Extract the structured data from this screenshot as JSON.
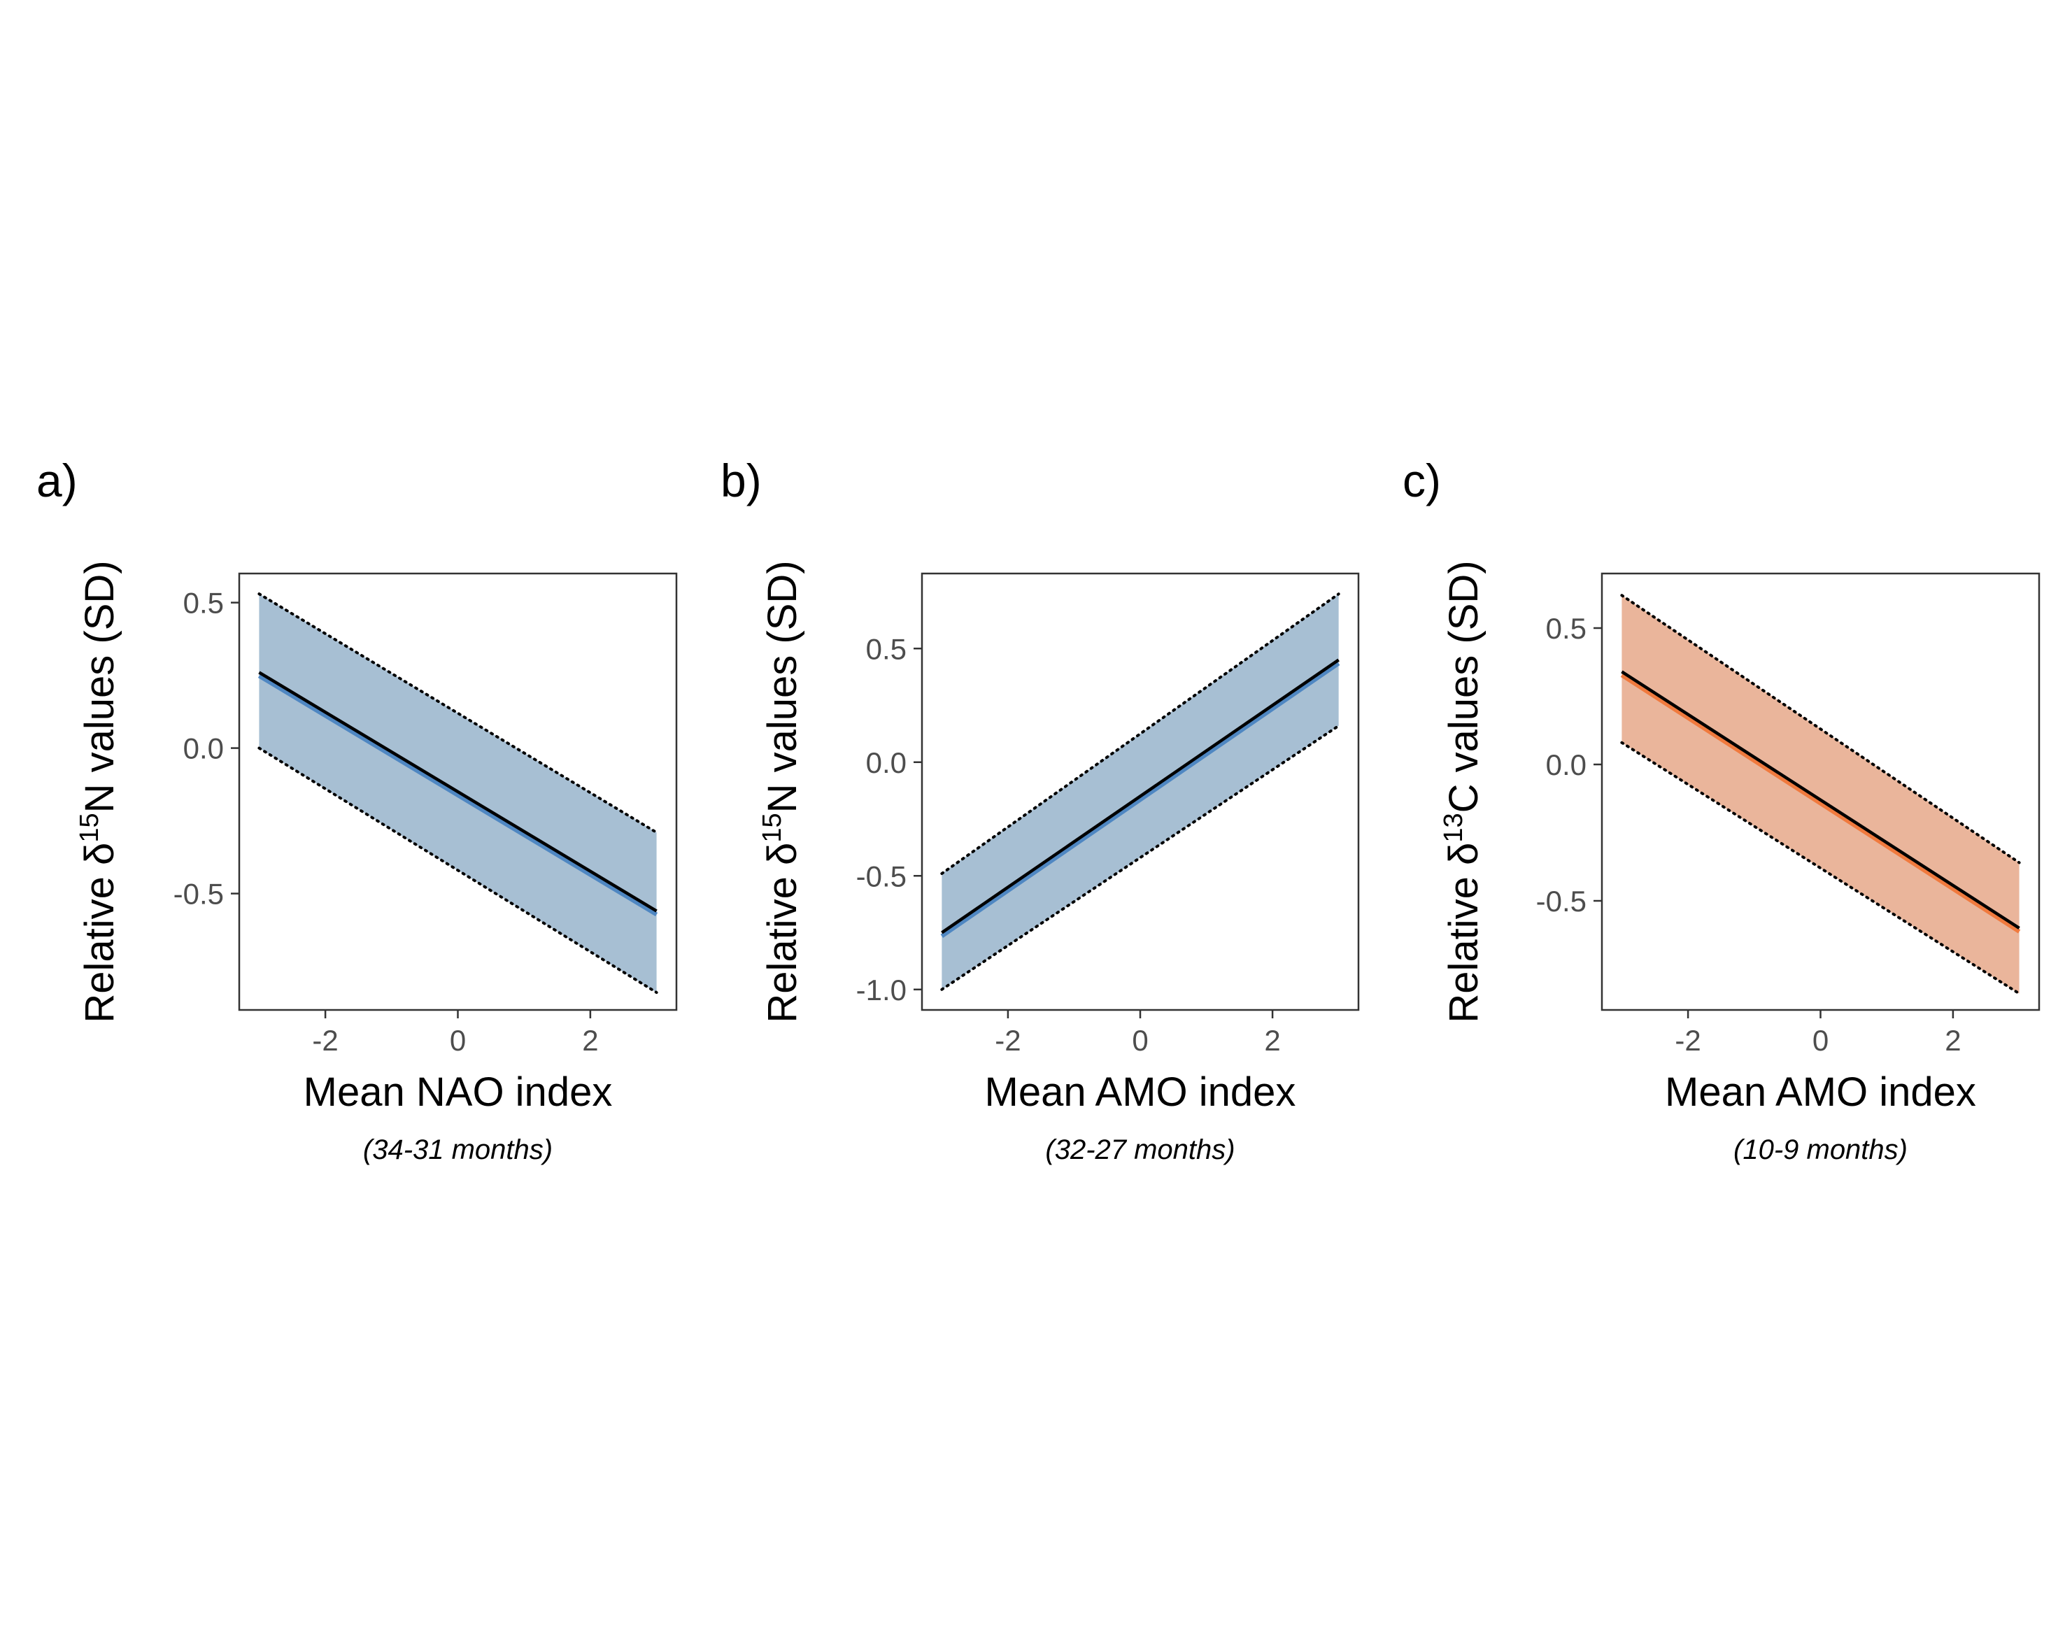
{
  "colors": {
    "blue_band": "#a7bfd3",
    "blue_line": "#4f87c2",
    "orange_band": "#eab59b",
    "orange_line": "#f07a3e",
    "fit_line": "#000000",
    "frame": "#333333"
  },
  "chart_data": [
    {
      "type": "line",
      "panel_label": "a)",
      "xlabel": "Mean NAO index",
      "x_sub": "(34-31 months)",
      "ylabel_parts": {
        "pre": "Relative δ",
        "sup": "15",
        "post": "N values (SD)"
      },
      "xlim": [
        -3.3,
        3.3
      ],
      "ylim": [
        -0.9,
        0.6
      ],
      "xticks": [
        -2,
        0,
        2
      ],
      "xtick_labels": [
        "-2",
        "0",
        "2"
      ],
      "yticks": [
        -0.5,
        0.0,
        0.5
      ],
      "ytick_labels": [
        "-0.5",
        "0.0",
        "0.5"
      ],
      "band_color": "blue",
      "x": [
        -3,
        3
      ],
      "fit": [
        0.26,
        -0.56
      ],
      "upper": [
        0.53,
        -0.29
      ],
      "lower": [
        0.0,
        -0.84
      ],
      "grid": false
    },
    {
      "type": "line",
      "panel_label": "b)",
      "xlabel": "Mean AMO index",
      "x_sub": "(32-27 months)",
      "ylabel_parts": {
        "pre": "Relative δ",
        "sup": "15",
        "post": "N values (SD)"
      },
      "xlim": [
        -3.3,
        3.3
      ],
      "ylim": [
        -1.09,
        0.83
      ],
      "xticks": [
        -2,
        0,
        2
      ],
      "xtick_labels": [
        "-2",
        "0",
        "2"
      ],
      "yticks": [
        -1.0,
        -0.5,
        0.0,
        0.5
      ],
      "ytick_labels": [
        "-1.0",
        "-0.5",
        "0.0",
        "0.5"
      ],
      "band_color": "blue",
      "x": [
        -3,
        3
      ],
      "fit": [
        -0.75,
        0.45
      ],
      "upper": [
        -0.49,
        0.74
      ],
      "lower": [
        -1.0,
        0.16
      ],
      "grid": false
    },
    {
      "type": "line",
      "panel_label": "c)",
      "xlabel": "Mean AMO index",
      "x_sub": "(10-9 months)",
      "ylabel_parts": {
        "pre": "Relative δ",
        "sup": "13",
        "post": "C values (SD)"
      },
      "xlim": [
        -3.3,
        3.3
      ],
      "ylim": [
        -0.9,
        0.7
      ],
      "xticks": [
        -2,
        0,
        2
      ],
      "xtick_labels": [
        "-2",
        "0",
        "2"
      ],
      "yticks": [
        -0.5,
        0.0,
        0.5
      ],
      "ytick_labels": [
        "-0.5",
        "0.0",
        "0.5"
      ],
      "band_color": "orange",
      "x": [
        -3,
        3
      ],
      "fit": [
        0.34,
        -0.6
      ],
      "upper": [
        0.62,
        -0.36
      ],
      "lower": [
        0.08,
        -0.84
      ],
      "grid": false
    }
  ]
}
